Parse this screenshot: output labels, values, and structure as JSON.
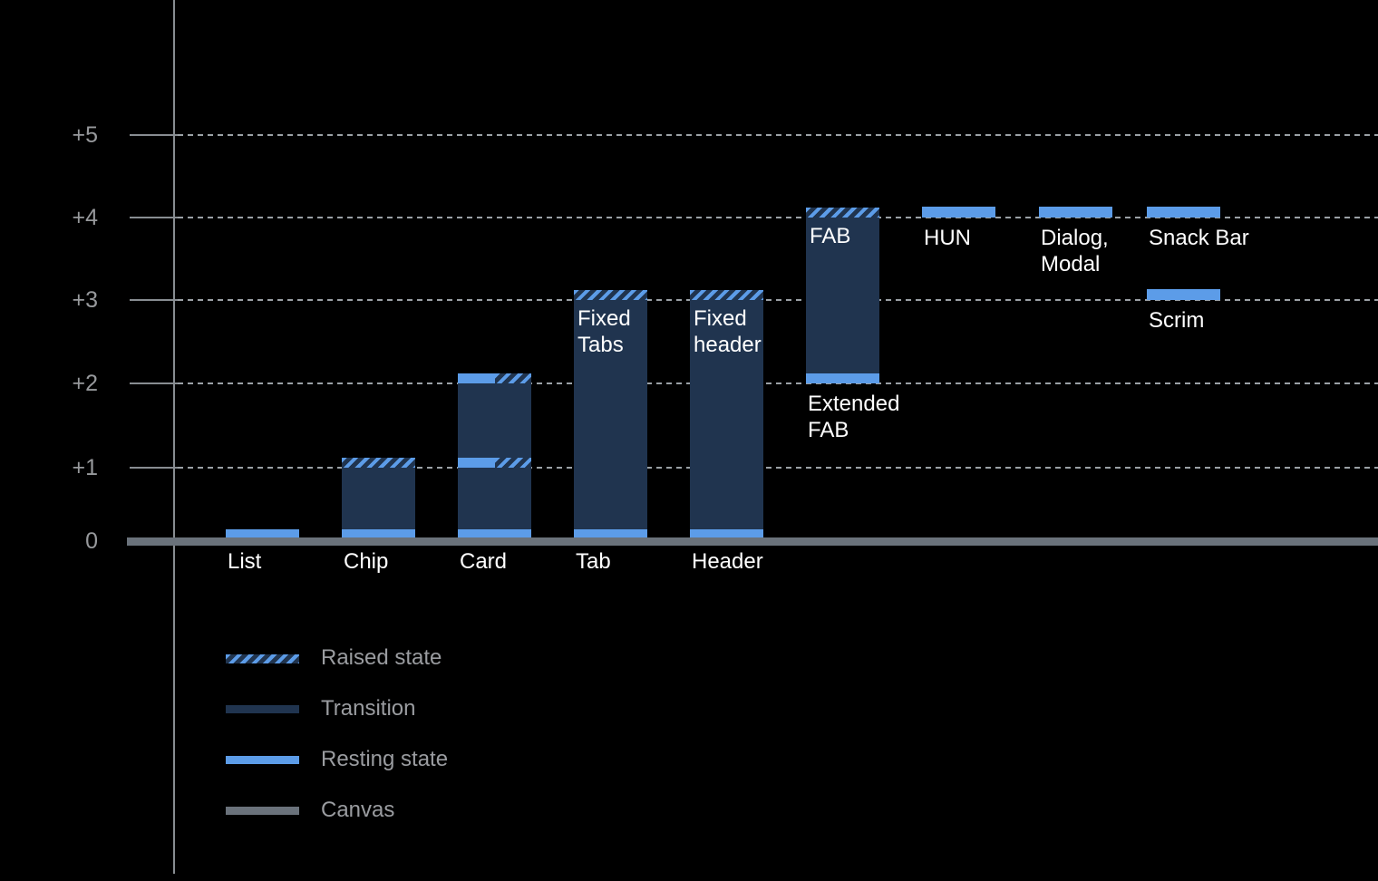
{
  "chart_data": {
    "type": "bar",
    "xlabel": "",
    "ylabel": "",
    "ylim": [
      0,
      5.6
    ],
    "grid": "dotted horizontal gridlines at +1 through +5, solid canvas baseline at 0",
    "y_ticks": [
      {
        "value": 5,
        "label": "+5"
      },
      {
        "value": 4,
        "label": "+4"
      },
      {
        "value": 3,
        "label": "+3"
      },
      {
        "value": 2,
        "label": "+2"
      },
      {
        "value": 1,
        "label": "+1"
      },
      {
        "value": 0,
        "label": "0"
      }
    ],
    "bars": [
      {
        "name": "list",
        "axis_label": "List",
        "segments": [
          {
            "kind": "resting",
            "from": 0,
            "to": 0.12
          }
        ]
      },
      {
        "name": "chip",
        "axis_label": "Chip",
        "segments": [
          {
            "kind": "resting",
            "from": 0,
            "to": 0.12
          },
          {
            "kind": "transition",
            "from": 0.12,
            "to": 1
          },
          {
            "kind": "raised",
            "from": 1,
            "to": 1.12
          }
        ]
      },
      {
        "name": "card",
        "axis_label": "Card",
        "segments": [
          {
            "kind": "resting",
            "from": 0,
            "to": 0.12
          },
          {
            "kind": "transition",
            "from": 0.12,
            "to": 1
          },
          {
            "kind": "resting+raised",
            "from": 1,
            "to": 1.12
          },
          {
            "kind": "transition",
            "from": 1.12,
            "to": 2
          },
          {
            "kind": "resting+raised",
            "from": 2,
            "to": 2.12
          }
        ]
      },
      {
        "name": "tab",
        "axis_label": "Tab",
        "inner_label": [
          "Fixed",
          "Tabs"
        ],
        "segments": [
          {
            "kind": "resting",
            "from": 0,
            "to": 0.12
          },
          {
            "kind": "transition",
            "from": 0.12,
            "to": 3
          },
          {
            "kind": "raised",
            "from": 3,
            "to": 3.12
          }
        ]
      },
      {
        "name": "header",
        "axis_label": "Header",
        "inner_label": [
          "Fixed",
          "header"
        ],
        "segments": [
          {
            "kind": "resting",
            "from": 0,
            "to": 0.12
          },
          {
            "kind": "transition",
            "from": 0.12,
            "to": 3
          },
          {
            "kind": "raised",
            "from": 3,
            "to": 3.12
          }
        ]
      },
      {
        "name": "fab",
        "inner_label": [
          "FAB"
        ],
        "below_label": [
          "Extended",
          "FAB"
        ],
        "segments": [
          {
            "kind": "resting",
            "from": 2,
            "to": 2.12
          },
          {
            "kind": "transition",
            "from": 2.12,
            "to": 4
          },
          {
            "kind": "raised",
            "from": 4,
            "to": 4.12
          }
        ]
      },
      {
        "name": "hun",
        "below_label": [
          "HUN"
        ],
        "segments": [
          {
            "kind": "resting",
            "from": 4,
            "to": 4.13
          }
        ]
      },
      {
        "name": "dialog-modal",
        "below_label": [
          "Dialog,",
          "Modal"
        ],
        "segments": [
          {
            "kind": "resting",
            "from": 4,
            "to": 4.13
          }
        ]
      },
      {
        "name": "snack-bar",
        "below_label": [
          "Snack Bar"
        ],
        "segments": [
          {
            "kind": "resting",
            "from": 4,
            "to": 4.13
          }
        ]
      },
      {
        "name": "scrim",
        "below_label": [
          "Scrim"
        ],
        "segments": [
          {
            "kind": "resting",
            "from": 3,
            "to": 3.13
          }
        ]
      }
    ],
    "legend": {
      "position": "bottom-left",
      "items": [
        {
          "kind": "raised",
          "label": "Raised state"
        },
        {
          "kind": "transition",
          "label": "Transition"
        },
        {
          "kind": "resting",
          "label": "Resting state"
        },
        {
          "kind": "canvas",
          "label": "Canvas"
        }
      ]
    },
    "colors": {
      "background": "#000000",
      "resting": "#5C9CE8",
      "transition": "#20344F",
      "canvas": "#6A727B",
      "axis": "#888D92",
      "grid": "#9BA1A6",
      "bar_label": "#FFFFFF",
      "axis_label": "#97999C",
      "legend_label": "#9A9CA0"
    }
  }
}
